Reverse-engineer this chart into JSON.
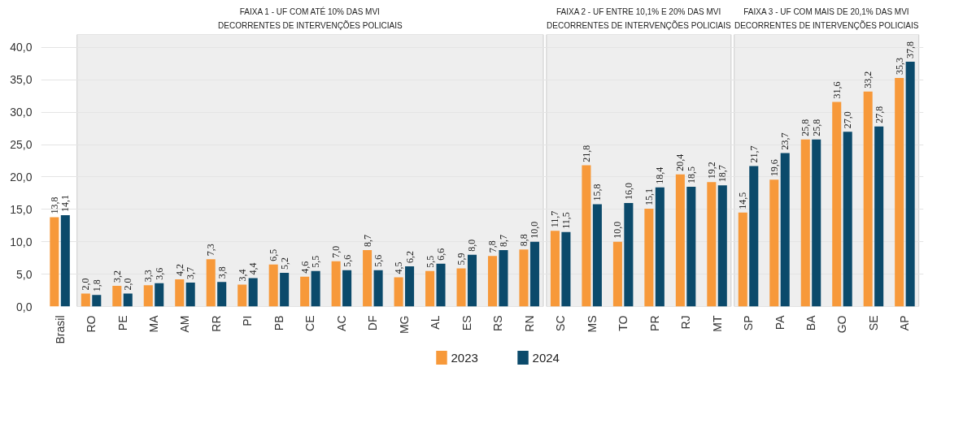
{
  "chart_data": {
    "type": "bar",
    "categories": [
      "Brasil",
      "RO",
      "PE",
      "MA",
      "AM",
      "RR",
      "PI",
      "PB",
      "CE",
      "AC",
      "DF",
      "MG",
      "AL",
      "ES",
      "RS",
      "RN",
      "SC",
      "MS",
      "TO",
      "PR",
      "RJ",
      "MT",
      "SP",
      "PA",
      "BA",
      "GO",
      "SE",
      "AP"
    ],
    "series": [
      {
        "name": "2023",
        "color": "#f7993a",
        "values": [
          13.8,
          2.0,
          3.2,
          3.3,
          4.2,
          7.3,
          3.4,
          6.5,
          4.6,
          7.0,
          8.7,
          4.5,
          5.5,
          5.9,
          7.8,
          8.8,
          11.7,
          21.8,
          10.0,
          15.1,
          20.4,
          19.2,
          14.5,
          19.6,
          25.8,
          31.6,
          33.2,
          35.3
        ],
        "value_labels": [
          "13,8",
          "2,0",
          "3,2",
          "3,3",
          "4,2",
          "7,3",
          "3,4",
          "6,5",
          "4,6",
          "7,0",
          "8,7",
          "4,5",
          "5,5",
          "5,9",
          "7,8",
          "8,8",
          "11,7",
          "21,8",
          "10,0",
          "15,1",
          "20,4",
          "19,2",
          "14,5",
          "19,6",
          "25,8",
          "31,6",
          "33,2",
          "35,3"
        ]
      },
      {
        "name": "2024",
        "color": "#0b4a6b",
        "values": [
          14.1,
          1.8,
          2.0,
          3.6,
          3.7,
          3.8,
          4.4,
          5.2,
          5.5,
          5.6,
          5.6,
          6.2,
          6.6,
          8.0,
          8.7,
          10.0,
          11.5,
          15.8,
          16.0,
          18.4,
          18.5,
          18.7,
          21.7,
          23.7,
          25.8,
          27.0,
          27.8,
          37.8
        ],
        "value_labels": [
          "14,1",
          "1,8",
          "2,0",
          "3,6",
          "3,7",
          "3,8",
          "4,4",
          "5,2",
          "5,5",
          "5,6",
          "5,6",
          "6,2",
          "6,6",
          "8,0",
          "8,7",
          "10,0",
          "11,5",
          "15,8",
          "16,0",
          "18,4",
          "18,5",
          "18,7",
          "21,7",
          "23,7",
          "25,8",
          "27,0",
          "27,8",
          "37,8"
        ]
      }
    ],
    "ylim": [
      0,
      42
    ],
    "yticks": [
      {
        "value": 0,
        "label": "0,0"
      },
      {
        "value": 5,
        "label": "5,0"
      },
      {
        "value": 10,
        "label": "10,0"
      },
      {
        "value": 15,
        "label": "15,0"
      },
      {
        "value": 20,
        "label": "20,0"
      },
      {
        "value": 25,
        "label": "25,0"
      },
      {
        "value": 30,
        "label": "30,0"
      },
      {
        "value": 35,
        "label": "35,0"
      },
      {
        "value": 40,
        "label": "40,0"
      }
    ],
    "grid": "y",
    "legend": "bottom",
    "bands": [
      {
        "axis": "x",
        "from": "RO",
        "to": "RN",
        "label": "FAIXA 1 - UF COM ATÉ 10% DAS MVI\nDECORRENTES DE INTERVENÇÕES POLICIAIS",
        "color": "#eeeeee"
      },
      {
        "axis": "x",
        "from": "SC",
        "to": "MT",
        "label": "FAIXA 2 - UF ENTRE 10,1% E 20% DAS MVI\nDECORRENTES DE INTERVENÇÕES POLICIAIS",
        "color": "#eeeeee"
      },
      {
        "axis": "x",
        "from": "SP",
        "to": "AP",
        "label": "FAIXA 3 - UF COM MAIS DE 20,1% DAS MVI\nDECORRENTES DE INTERVENÇÕES POLICIAIS",
        "color": "#eeeeee"
      }
    ]
  }
}
